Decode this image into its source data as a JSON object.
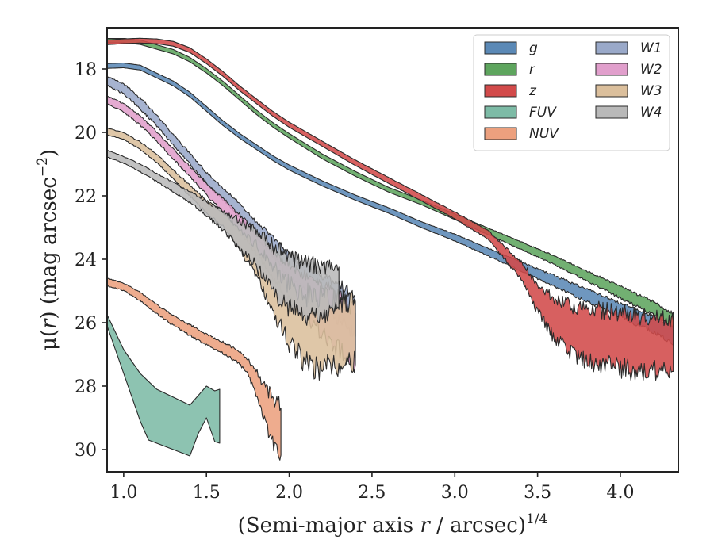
{
  "chart_data": {
    "type": "area",
    "xlabel_main": "(Semi-major axis ",
    "xlabel_italic": "r",
    "xlabel_tail": " / arcsec)",
    "xlabel_sup": "1/4",
    "ylabel_pre": "μ(",
    "ylabel_italic": "r",
    "ylabel_mid": ") (mag arcsec",
    "ylabel_sup": "−2",
    "ylabel_post": ")",
    "xlim": [
      0.9,
      4.35
    ],
    "ylim": [
      30.7,
      16.7
    ],
    "y_inverted": true,
    "xticks": [
      1.0,
      1.5,
      2.0,
      2.5,
      3.0,
      3.5,
      4.0
    ],
    "xtick_labels": [
      "1.0",
      "1.5",
      "2.0",
      "2.5",
      "3.0",
      "3.5",
      "4.0"
    ],
    "yticks": [
      18,
      20,
      22,
      24,
      26,
      28,
      30
    ],
    "ytick_labels": [
      "18",
      "20",
      "22",
      "24",
      "26",
      "28",
      "30"
    ],
    "grid": false,
    "legend_position": "top-right",
    "legend_columns": 2,
    "series": [
      {
        "name": "r",
        "color": "#5ea55e",
        "points": [
          [
            0.9,
            17.1
          ],
          [
            1.0,
            17.1
          ],
          [
            1.1,
            17.15
          ],
          [
            1.2,
            17.3
          ],
          [
            1.3,
            17.45
          ],
          [
            1.4,
            17.7
          ],
          [
            1.5,
            18.05
          ],
          [
            1.6,
            18.45
          ],
          [
            1.7,
            18.9
          ],
          [
            1.8,
            19.35
          ],
          [
            1.9,
            19.75
          ],
          [
            2.0,
            20.1
          ],
          [
            2.2,
            20.75
          ],
          [
            2.4,
            21.3
          ],
          [
            2.6,
            21.8
          ],
          [
            2.8,
            22.2
          ],
          [
            3.0,
            22.65
          ],
          [
            3.2,
            23.1
          ],
          [
            3.4,
            23.55
          ],
          [
            3.6,
            24.0
          ],
          [
            3.8,
            24.5
          ],
          [
            4.0,
            25.0
          ],
          [
            4.2,
            25.5
          ],
          [
            4.32,
            25.9
          ]
        ],
        "widths": [
          0.14,
          0.14,
          0.14,
          0.14,
          0.14,
          0.14,
          0.14,
          0.14,
          0.14,
          0.14,
          0.14,
          0.14,
          0.15,
          0.15,
          0.15,
          0.15,
          0.17,
          0.2,
          0.22,
          0.25,
          0.28,
          0.32,
          0.36,
          0.4
        ]
      },
      {
        "name": "g",
        "color": "#5b89b6",
        "points": [
          [
            0.9,
            17.9
          ],
          [
            1.0,
            17.88
          ],
          [
            1.1,
            17.95
          ],
          [
            1.2,
            18.2
          ],
          [
            1.3,
            18.45
          ],
          [
            1.4,
            18.8
          ],
          [
            1.5,
            19.25
          ],
          [
            1.6,
            19.7
          ],
          [
            1.7,
            20.1
          ],
          [
            1.8,
            20.45
          ],
          [
            1.9,
            20.8
          ],
          [
            2.0,
            21.1
          ],
          [
            2.2,
            21.6
          ],
          [
            2.4,
            22.05
          ],
          [
            2.6,
            22.45
          ],
          [
            2.8,
            22.9
          ],
          [
            3.0,
            23.3
          ],
          [
            3.2,
            23.75
          ],
          [
            3.4,
            24.2
          ],
          [
            3.6,
            24.65
          ],
          [
            3.8,
            25.1
          ],
          [
            4.0,
            25.55
          ],
          [
            4.2,
            26.0
          ],
          [
            4.32,
            26.3
          ]
        ],
        "widths": [
          0.15,
          0.15,
          0.15,
          0.15,
          0.15,
          0.15,
          0.15,
          0.15,
          0.15,
          0.15,
          0.15,
          0.16,
          0.16,
          0.16,
          0.17,
          0.18,
          0.2,
          0.22,
          0.26,
          0.3,
          0.34,
          0.38,
          0.42,
          0.46
        ]
      },
      {
        "name": "z",
        "color": "#d24a4a",
        "points": [
          [
            0.9,
            17.15
          ],
          [
            1.0,
            17.12
          ],
          [
            1.1,
            17.1
          ],
          [
            1.2,
            17.12
          ],
          [
            1.3,
            17.2
          ],
          [
            1.4,
            17.4
          ],
          [
            1.5,
            17.75
          ],
          [
            1.6,
            18.15
          ],
          [
            1.7,
            18.6
          ],
          [
            1.8,
            19.0
          ],
          [
            1.9,
            19.4
          ],
          [
            2.0,
            19.75
          ],
          [
            2.2,
            20.35
          ],
          [
            2.4,
            20.95
          ],
          [
            2.6,
            21.5
          ],
          [
            2.8,
            22.05
          ],
          [
            3.0,
            22.6
          ],
          [
            3.2,
            23.2
          ],
          [
            3.4,
            24.3
          ],
          [
            3.5,
            25.1
          ],
          [
            3.6,
            25.7
          ],
          [
            3.7,
            26.0
          ],
          [
            3.8,
            26.2
          ],
          [
            3.9,
            26.25
          ],
          [
            4.0,
            26.3
          ],
          [
            4.1,
            26.4
          ],
          [
            4.2,
            26.4
          ],
          [
            4.32,
            26.5
          ]
        ],
        "widths": [
          0.15,
          0.15,
          0.15,
          0.15,
          0.15,
          0.15,
          0.15,
          0.15,
          0.15,
          0.15,
          0.15,
          0.16,
          0.16,
          0.17,
          0.18,
          0.19,
          0.2,
          0.25,
          0.45,
          0.7,
          1.0,
          1.2,
          1.3,
          1.4,
          1.4,
          1.4,
          1.4,
          1.2
        ]
      },
      {
        "name": "W1",
        "color": "#9aa9c9",
        "points": [
          [
            0.9,
            18.35
          ],
          [
            1.0,
            18.6
          ],
          [
            1.1,
            19.05
          ],
          [
            1.2,
            19.6
          ],
          [
            1.3,
            20.2
          ],
          [
            1.4,
            20.8
          ],
          [
            1.5,
            21.4
          ],
          [
            1.6,
            21.9
          ],
          [
            1.7,
            22.4
          ],
          [
            1.8,
            23.0
          ],
          [
            1.9,
            23.5
          ],
          [
            2.0,
            24.1
          ],
          [
            2.1,
            24.5
          ],
          [
            2.2,
            24.9
          ],
          [
            2.3,
            25.2
          ],
          [
            2.4,
            25.6
          ]
        ],
        "widths": [
          0.25,
          0.28,
          0.3,
          0.3,
          0.3,
          0.3,
          0.3,
          0.32,
          0.35,
          0.4,
          0.5,
          0.6,
          0.7,
          0.8,
          0.9,
          1.0
        ]
      },
      {
        "name": "W2",
        "color": "#e19fcc",
        "points": [
          [
            0.9,
            18.95
          ],
          [
            1.0,
            19.2
          ],
          [
            1.1,
            19.6
          ],
          [
            1.2,
            20.1
          ],
          [
            1.3,
            20.65
          ],
          [
            1.4,
            21.2
          ],
          [
            1.5,
            21.75
          ],
          [
            1.6,
            22.25
          ],
          [
            1.7,
            22.8
          ],
          [
            1.8,
            23.4
          ],
          [
            1.9,
            24.0
          ],
          [
            2.0,
            24.6
          ],
          [
            2.1,
            25.0
          ],
          [
            2.2,
            25.4
          ],
          [
            2.3,
            25.8
          ],
          [
            2.4,
            26.2
          ]
        ],
        "widths": [
          0.22,
          0.24,
          0.26,
          0.26,
          0.28,
          0.3,
          0.32,
          0.36,
          0.45,
          0.55,
          0.7,
          0.9,
          1.0,
          1.2,
          1.3,
          1.4
        ]
      },
      {
        "name": "W3",
        "color": "#dbbf9c",
        "points": [
          [
            0.9,
            19.95
          ],
          [
            1.0,
            20.1
          ],
          [
            1.1,
            20.4
          ],
          [
            1.2,
            20.8
          ],
          [
            1.3,
            21.3
          ],
          [
            1.4,
            21.8
          ],
          [
            1.5,
            22.3
          ],
          [
            1.6,
            22.7
          ],
          [
            1.7,
            23.3
          ],
          [
            1.8,
            23.9
          ],
          [
            1.9,
            24.7
          ],
          [
            2.0,
            25.5
          ],
          [
            2.1,
            25.9
          ],
          [
            2.2,
            26.0
          ],
          [
            2.3,
            26.1
          ],
          [
            2.4,
            26.0
          ]
        ],
        "widths": [
          0.2,
          0.2,
          0.22,
          0.24,
          0.26,
          0.3,
          0.34,
          0.4,
          0.5,
          0.8,
          1.1,
          1.5,
          1.7,
          1.8,
          1.7,
          1.5
        ]
      },
      {
        "name": "W4",
        "color": "#b9b9b9",
        "points": [
          [
            0.9,
            20.65
          ],
          [
            1.0,
            20.85
          ],
          [
            1.1,
            21.1
          ],
          [
            1.2,
            21.4
          ],
          [
            1.3,
            21.7
          ],
          [
            1.4,
            22.0
          ],
          [
            1.5,
            22.35
          ],
          [
            1.6,
            22.7
          ],
          [
            1.7,
            23.1
          ],
          [
            1.8,
            23.5
          ],
          [
            1.9,
            24.1
          ],
          [
            2.0,
            24.5
          ],
          [
            2.1,
            24.7
          ],
          [
            2.2,
            24.85
          ],
          [
            2.3,
            24.7
          ]
        ],
        "widths": [
          0.2,
          0.2,
          0.22,
          0.24,
          0.26,
          0.3,
          0.38,
          0.5,
          0.7,
          0.9,
          1.2,
          1.3,
          1.4,
          1.2,
          1.1
        ]
      },
      {
        "name": "NUV",
        "color": "#eca07e",
        "points": [
          [
            0.9,
            24.7
          ],
          [
            1.0,
            24.85
          ],
          [
            1.1,
            25.15
          ],
          [
            1.2,
            25.55
          ],
          [
            1.3,
            25.9
          ],
          [
            1.4,
            26.2
          ],
          [
            1.5,
            26.5
          ],
          [
            1.6,
            26.75
          ],
          [
            1.7,
            27.05
          ],
          [
            1.75,
            27.35
          ],
          [
            1.8,
            27.8
          ],
          [
            1.85,
            28.4
          ],
          [
            1.9,
            28.9
          ],
          [
            1.95,
            29.2
          ]
        ],
        "widths": [
          0.22,
          0.22,
          0.24,
          0.26,
          0.28,
          0.3,
          0.3,
          0.32,
          0.34,
          0.4,
          0.6,
          0.9,
          1.2,
          1.3
        ]
      },
      {
        "name": "FUV",
        "color": "#7dbba6",
        "polygon": [
          [
            0.9,
            25.75
          ],
          [
            1.0,
            26.85
          ],
          [
            1.1,
            27.6
          ],
          [
            1.2,
            28.1
          ],
          [
            1.3,
            28.35
          ],
          [
            1.4,
            28.6
          ],
          [
            1.5,
            28.0
          ],
          [
            1.55,
            28.15
          ],
          [
            1.58,
            28.1
          ],
          [
            1.58,
            29.8
          ],
          [
            1.55,
            29.75
          ],
          [
            1.5,
            29.0
          ],
          [
            1.45,
            29.5
          ],
          [
            1.4,
            30.2
          ],
          [
            1.3,
            30.0
          ],
          [
            1.2,
            29.8
          ],
          [
            1.15,
            29.7
          ],
          [
            1.1,
            29.1
          ],
          [
            1.0,
            27.6
          ],
          [
            0.9,
            26.1
          ]
        ]
      }
    ],
    "legend_order": [
      "g",
      "r",
      "z",
      "FUV",
      "NUV",
      "W1",
      "W2",
      "W3",
      "W4"
    ],
    "legend_labels": {
      "g": "g",
      "r": "r",
      "z": "z",
      "FUV": "FUV",
      "NUV": "NUV",
      "W1": "W1",
      "W2": "W2",
      "W3": "W3",
      "W4": "W4"
    }
  }
}
